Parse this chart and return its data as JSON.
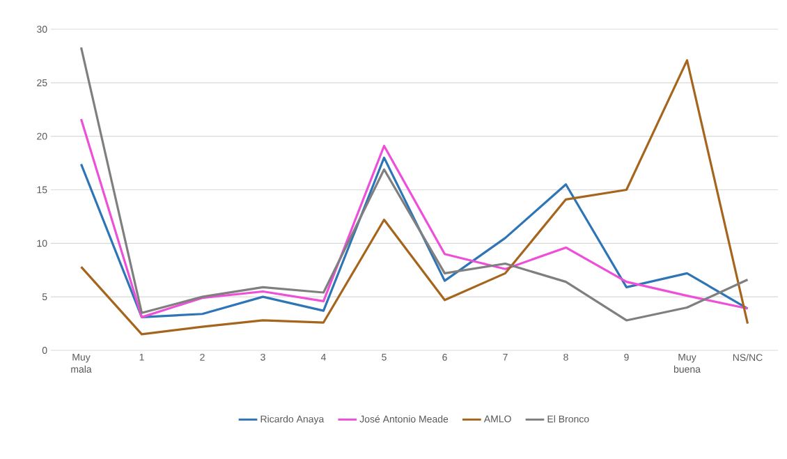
{
  "chart_data": {
    "type": "line",
    "categories": [
      "Muy mala",
      "1",
      "2",
      "3",
      "4",
      "5",
      "6",
      "7",
      "8",
      "9",
      "Muy buena",
      "NS/NC"
    ],
    "series": [
      {
        "name": "Ricardo Anaya",
        "color": "#2e75b6",
        "values": [
          17.4,
          3.1,
          3.4,
          5.0,
          3.7,
          18.0,
          6.5,
          10.5,
          15.5,
          5.9,
          7.2,
          3.9
        ]
      },
      {
        "name": "José Antonio Meade",
        "color": "#ee4fd8",
        "values": [
          21.6,
          3.1,
          4.9,
          5.5,
          4.6,
          19.1,
          9.0,
          7.6,
          9.6,
          6.4,
          5.1,
          3.9
        ]
      },
      {
        "name": "AMLO",
        "color": "#a5651c",
        "values": [
          7.8,
          1.5,
          2.2,
          2.8,
          2.6,
          12.2,
          4.7,
          7.2,
          14.1,
          15.0,
          27.1,
          2.5
        ]
      },
      {
        "name": "El Bronco",
        "color": "#7f7f7f",
        "values": [
          28.3,
          3.5,
          5.0,
          5.9,
          5.4,
          16.9,
          7.2,
          8.1,
          6.4,
          2.8,
          4.0,
          6.6
        ]
      }
    ],
    "ylim": [
      0,
      30
    ],
    "yticks": [
      0,
      5,
      10,
      15,
      20,
      25,
      30
    ],
    "grid": "y",
    "legend": "bottom",
    "marker": "none",
    "line_style": "solid"
  }
}
